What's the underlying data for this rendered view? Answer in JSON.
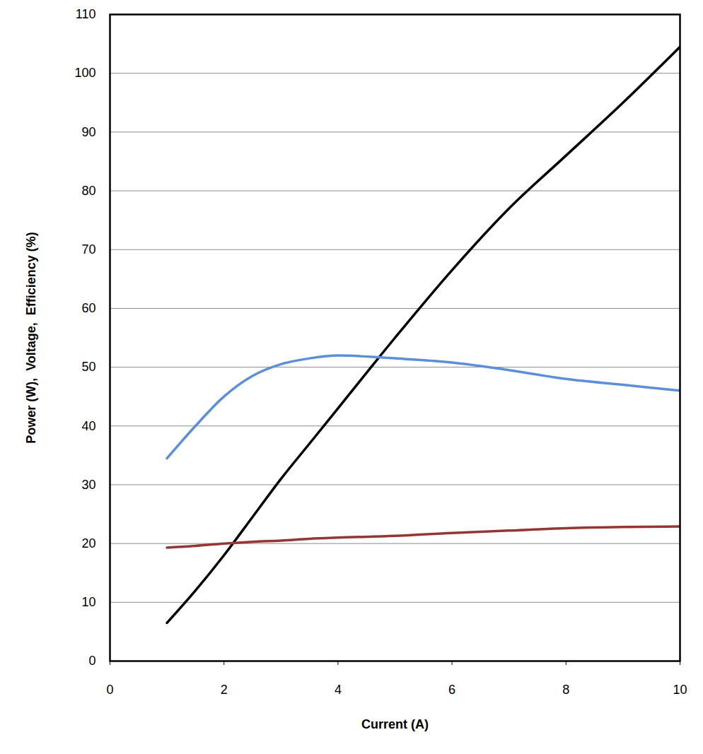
{
  "chart_data": {
    "type": "line",
    "xlabel": "Current (A)",
    "ylabel": "Power (W),  Voltage,  Efficiency (%)",
    "x": [
      1,
      1.5,
      2,
      2.5,
      3,
      3.5,
      4,
      5,
      6,
      7,
      8,
      9,
      10
    ],
    "series": [
      {
        "color": "#000000",
        "values": [
          6.5,
          12,
          18,
          24.5,
          31,
          37,
          43,
          55,
          66.5,
          77,
          86,
          95,
          104.5
        ]
      },
      {
        "color": "#5b8fd6",
        "values": [
          34.5,
          40,
          45,
          48.5,
          50.5,
          51.5,
          52,
          51.5,
          50.8,
          49.5,
          48,
          47,
          46
        ]
      },
      {
        "color": "#943634",
        "values": [
          19.3,
          19.6,
          20,
          20.3,
          20.5,
          20.8,
          21,
          21.3,
          21.8,
          22.2,
          22.6,
          22.8,
          22.9
        ]
      }
    ],
    "xlim": [
      0,
      10
    ],
    "xticks": [
      0,
      2,
      4,
      6,
      8,
      10
    ],
    "ylim": [
      0,
      110
    ],
    "yticks": [
      0,
      10,
      20,
      30,
      40,
      50,
      60,
      70,
      80,
      90,
      100,
      110
    ],
    "grid": true
  }
}
